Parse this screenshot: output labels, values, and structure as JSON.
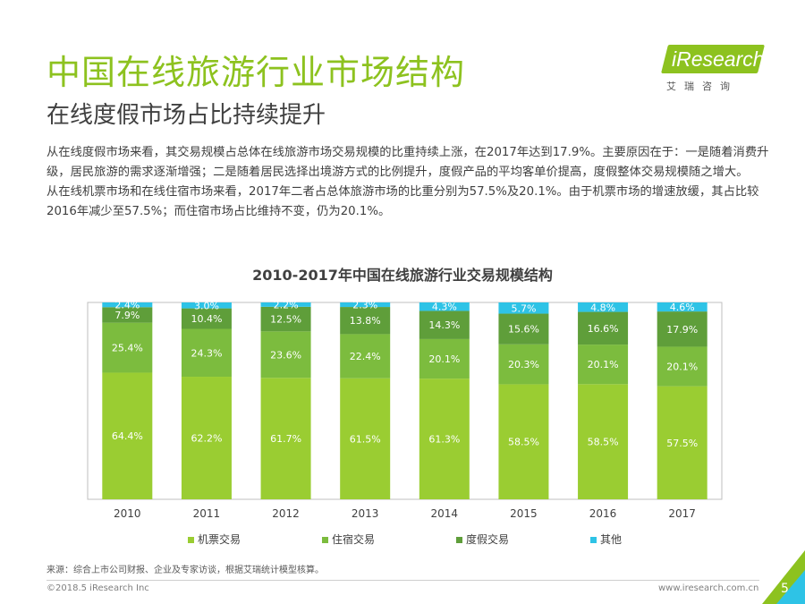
{
  "header": {
    "title": "中国在线旅游行业市场结构",
    "subtitle": "在线度假市场占比持续提升"
  },
  "logo": {
    "brand": "iResearch",
    "tagline": "艾瑞咨询"
  },
  "body": {
    "paragraphs": [
      "从在线度假市场来看，其交易规模占总体在线旅游市场交易规模的比重持续上涨，在2017年达到17.9%。主要原因在于：一是随着消费升级，居民旅游的需求逐渐增强；二是随着居民选择出境游方式的比例提升，度假产品的平均客单价提高，度假整体交易规模随之增大。",
      "从在线机票市场和在线住宿市场来看，2017年二者占总体旅游市场的比重分别为57.5%及20.1%。由于机票市场的增速放缓，其占比较2016年减少至57.5%；而住宿市场占比维持不变，仍为20.1%。"
    ]
  },
  "chart_data": {
    "type": "bar",
    "stacked": true,
    "percent": true,
    "title": "2010-2017年中国在线旅游行业交易规模结构",
    "categories": [
      "2010",
      "2011",
      "2012",
      "2013",
      "2014",
      "2015",
      "2016",
      "2017"
    ],
    "series": [
      {
        "name": "机票交易",
        "color": "#9acd32",
        "values": [
          64.4,
          62.2,
          61.7,
          61.5,
          61.3,
          58.5,
          58.5,
          57.5
        ]
      },
      {
        "name": "住宿交易",
        "color": "#7cbc3e",
        "values": [
          25.4,
          24.3,
          23.6,
          22.4,
          20.1,
          20.3,
          20.1,
          20.1
        ]
      },
      {
        "name": "度假交易",
        "color": "#5f9e3a",
        "values": [
          7.9,
          10.4,
          12.5,
          13.8,
          14.3,
          15.6,
          16.6,
          17.9
        ]
      },
      {
        "name": "其他",
        "color": "#2ec3e6",
        "values": [
          2.4,
          3.0,
          2.2,
          2.3,
          4.3,
          5.7,
          4.8,
          4.6
        ]
      }
    ],
    "ylim": [
      0,
      100
    ],
    "legend": "bottom"
  },
  "footer": {
    "source": "来源：综合上市公司财报、企业及专家访谈，根据艾瑞统计模型核算。",
    "copyright": "©2018.5 iResearch Inc",
    "website": "www.iresearch.com.cn",
    "page": "5"
  }
}
